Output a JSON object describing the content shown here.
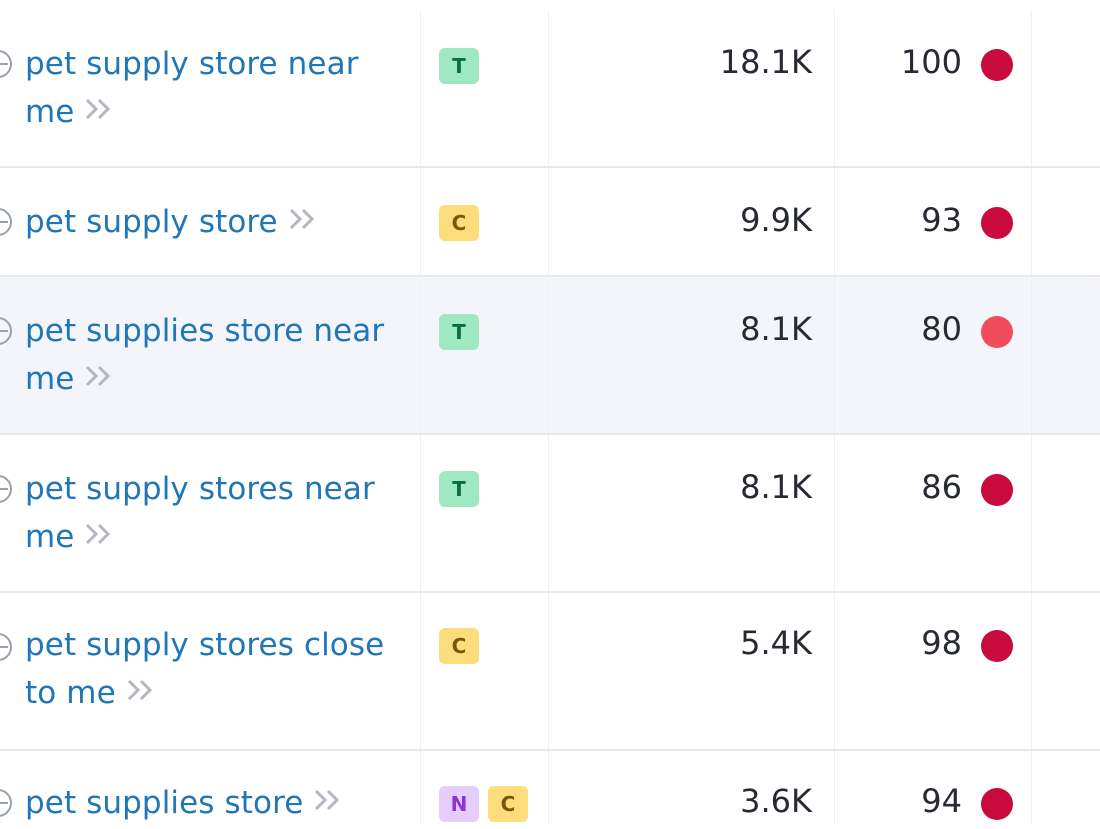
{
  "colors": {
    "link": "#2176b8",
    "kd_dark": "#c80a3c",
    "kd_light": "#f04c5c",
    "badge_T_bg": "#9ee9c4",
    "badge_C_bg": "#fddc7c",
    "badge_N_bg": "#e5cdfc"
  },
  "rows": [
    {
      "keyword_line1": "pet supply store near",
      "keyword_line2": "me",
      "intents": [
        "T"
      ],
      "volume": "18.1K",
      "kd": "100",
      "kd_color": "#c80a3c"
    },
    {
      "keyword_line1": "pet supply store",
      "keyword_line2": "",
      "intents": [
        "C"
      ],
      "volume": "9.9K",
      "kd": "93",
      "kd_color": "#c80a3c"
    },
    {
      "keyword_line1": "pet supplies store near",
      "keyword_line2": "me",
      "intents": [
        "T"
      ],
      "volume": "8.1K",
      "kd": "80",
      "kd_color": "#f04c5c"
    },
    {
      "keyword_line1": "pet supply stores near",
      "keyword_line2": "me",
      "intents": [
        "T"
      ],
      "volume": "8.1K",
      "kd": "86",
      "kd_color": "#c80a3c"
    },
    {
      "keyword_line1": "pet supply stores close",
      "keyword_line2": "to me",
      "intents": [
        "C"
      ],
      "volume": "5.4K",
      "kd": "98",
      "kd_color": "#c80a3c"
    },
    {
      "keyword_line1": "pet supplies store",
      "keyword_line2": "",
      "intents": [
        "N",
        "C"
      ],
      "volume": "3.6K",
      "kd": "94",
      "kd_color": "#c80a3c"
    }
  ]
}
